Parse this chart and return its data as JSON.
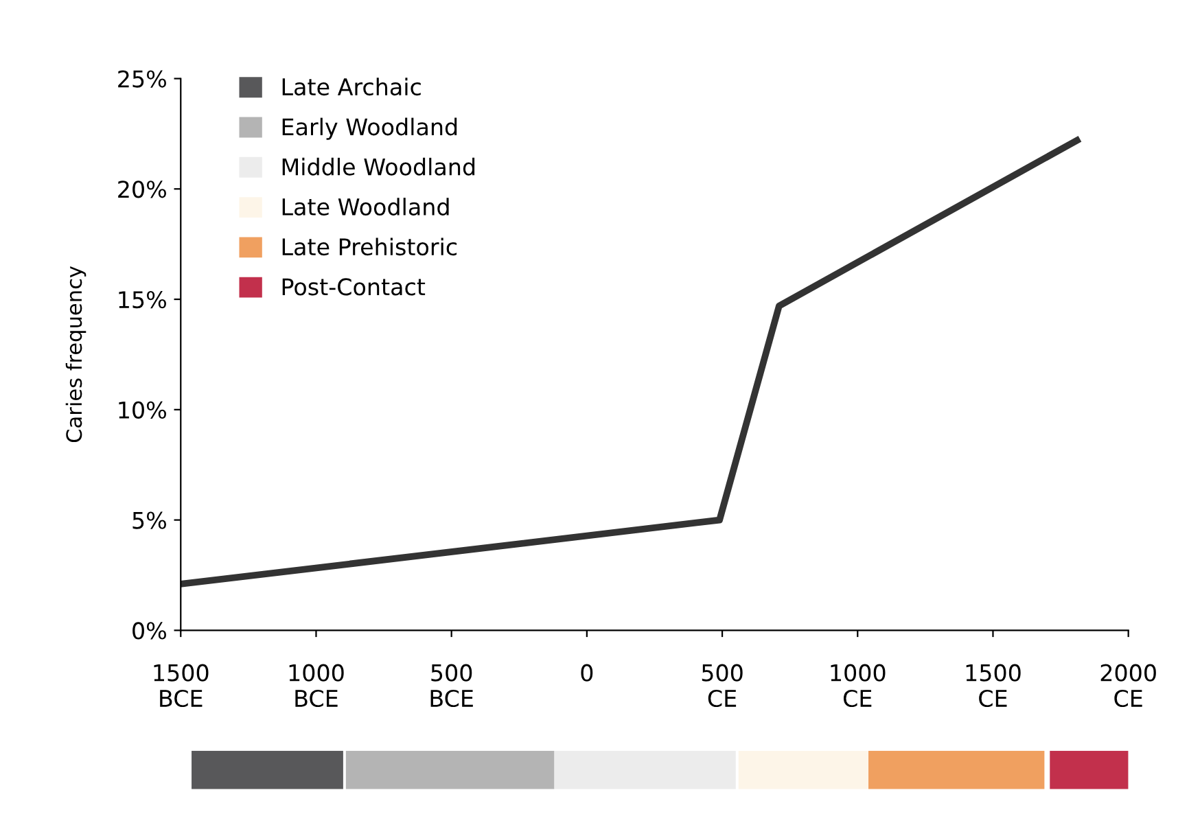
{
  "chart_data": [
    {
      "type": "line",
      "ylabel": "Caries frequency",
      "x": [
        -1500,
        490,
        710,
        1810
      ],
      "series": [
        {
          "color": "#333333",
          "values": [
            2.1,
            5.0,
            14.7,
            22.2
          ]
        }
      ],
      "xlim": [
        -1500,
        2000
      ],
      "xticks": [
        {
          "value": -1500,
          "label": "1500\nBCE"
        },
        {
          "value": -1000,
          "label": "1000\nBCE"
        },
        {
          "value": -500,
          "label": "500\nBCE"
        },
        0,
        {
          "value": 500,
          "label": "500\nCE"
        },
        {
          "value": 1000,
          "label": "1000\nCE"
        },
        {
          "value": 1500,
          "label": "1500\nCE"
        },
        {
          "value": 2000,
          "label": "2000\nCE"
        }
      ],
      "ylim": [
        0,
        25
      ],
      "yticks": [
        {
          "value": 0,
          "label": "0%"
        },
        {
          "value": 5,
          "label": "5%"
        },
        {
          "value": 10,
          "label": "10%"
        },
        {
          "value": 15,
          "label": "15%"
        },
        {
          "value": 20,
          "label": "20%"
        },
        {
          "value": 25,
          "label": "25%"
        }
      ],
      "grid": false,
      "marker": "none",
      "line_style": "solid"
    },
    {
      "type": "bar",
      "orientation": "horizontal",
      "categories": [
        null
      ],
      "series": [
        {
          "name": "Late Archaic",
          "color": "#58585a",
          "base": [
            -1460
          ],
          "values": [
            560
          ]
        },
        {
          "name": "Early Woodland",
          "color": "#b4b4b4",
          "base": [
            -890
          ],
          "values": [
            770
          ]
        },
        {
          "name": "Middle Woodland",
          "color": "#ececec",
          "base": [
            -120
          ],
          "values": [
            670
          ]
        },
        {
          "name": "Late Woodland",
          "color": "#fdf5e8",
          "base": [
            560
          ],
          "values": [
            480
          ]
        },
        {
          "name": "Late Prehistoric",
          "color": "#f0a060",
          "base": [
            1040
          ],
          "values": [
            650
          ]
        },
        {
          "name": "Post-Contact",
          "color": "#c2304c",
          "base": [
            1710
          ],
          "values": [
            290
          ]
        }
      ],
      "xlim": [
        -1500,
        2000
      ],
      "tick_labels": false,
      "legend": "top left"
    }
  ]
}
